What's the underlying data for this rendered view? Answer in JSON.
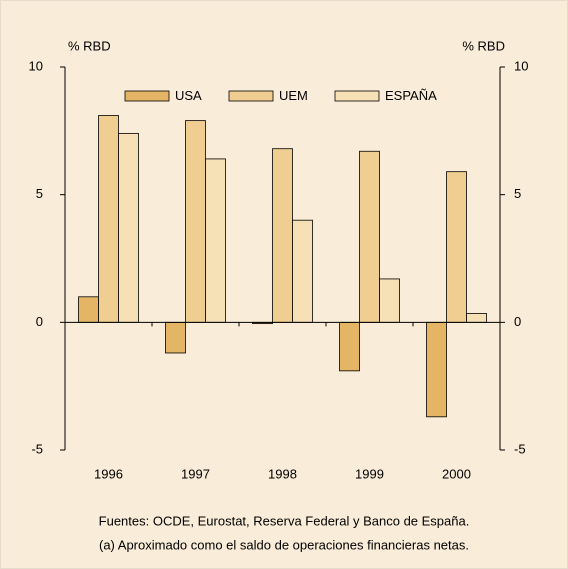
{
  "chart_data": {
    "type": "bar",
    "categories": [
      "1996",
      "1997",
      "1998",
      "1999",
      "2000"
    ],
    "series": [
      {
        "name": "USA",
        "color": "#e3b564",
        "values": [
          1.0,
          -1.2,
          -0.05,
          -1.9,
          -3.7
        ]
      },
      {
        "name": "UEM",
        "color": "#f0cd90",
        "values": [
          8.1,
          7.9,
          6.8,
          6.7,
          5.9
        ]
      },
      {
        "name": "ESPAÑA",
        "color": "#f6e0b6",
        "values": [
          7.4,
          6.4,
          4.0,
          1.7,
          0.35
        ]
      }
    ],
    "y_label": "% RBD",
    "y2_label": "% RBD",
    "ylim": [
      -5,
      10
    ],
    "yticks": [
      -5,
      0,
      5,
      10
    ],
    "y2lim": [
      -5,
      10
    ],
    "y2ticks": [
      -5,
      0,
      5,
      10
    ],
    "notes": [
      "Fuentes: OCDE, Eurostat, Reserva Federal y Banco de España.",
      "(a)  Aproximado como el saldo de operaciones financieras netas."
    ]
  }
}
